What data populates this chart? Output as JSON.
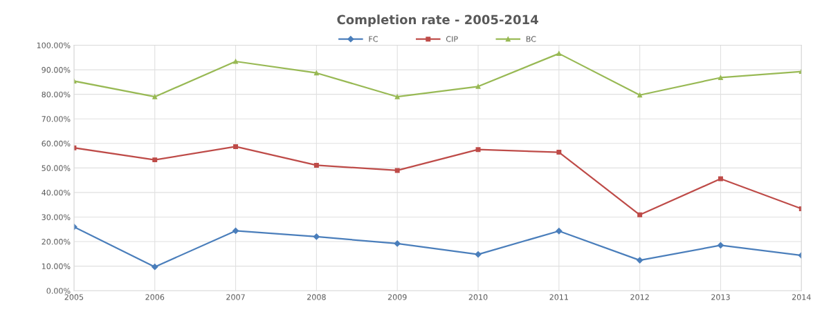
{
  "chart_data": {
    "type": "line",
    "title": "Completion rate - 2005-2014",
    "categories": [
      "2005",
      "2006",
      "2007",
      "2008",
      "2009",
      "2010",
      "2011",
      "2012",
      "2013",
      "2014"
    ],
    "series": [
      {
        "name": "FC",
        "color": "#4a7ebb",
        "marker": "diamond",
        "values": [
          26.0,
          9.7,
          24.4,
          22.0,
          19.2,
          14.8,
          24.3,
          12.4,
          18.5,
          14.4
        ]
      },
      {
        "name": "CIP",
        "color": "#be4b48",
        "marker": "square",
        "values": [
          58.2,
          53.3,
          58.7,
          51.1,
          49.0,
          57.5,
          56.4,
          30.9,
          45.6,
          33.4
        ]
      },
      {
        "name": "BC",
        "color": "#98b954",
        "marker": "triangle",
        "values": [
          85.4,
          79.0,
          93.4,
          88.7,
          79.0,
          83.2,
          96.6,
          79.7,
          86.8,
          89.3
        ]
      }
    ],
    "ylim": [
      0,
      100
    ],
    "yticks": [
      {
        "value": 0,
        "label": "0.00%"
      },
      {
        "value": 10,
        "label": "10.00%"
      },
      {
        "value": 20,
        "label": "20.00%"
      },
      {
        "value": 30,
        "label": "30.00%"
      },
      {
        "value": 40,
        "label": "40.00%"
      },
      {
        "value": 50,
        "label": "50.00%"
      },
      {
        "value": 60,
        "label": "60.00%"
      },
      {
        "value": 70,
        "label": "70.00%"
      },
      {
        "value": 80,
        "label": "80.00%"
      },
      {
        "value": 90,
        "label": "90.00%"
      },
      {
        "value": 100,
        "label": "100.00%"
      }
    ],
    "grid": true,
    "legend": "top",
    "line_style": "solid"
  }
}
